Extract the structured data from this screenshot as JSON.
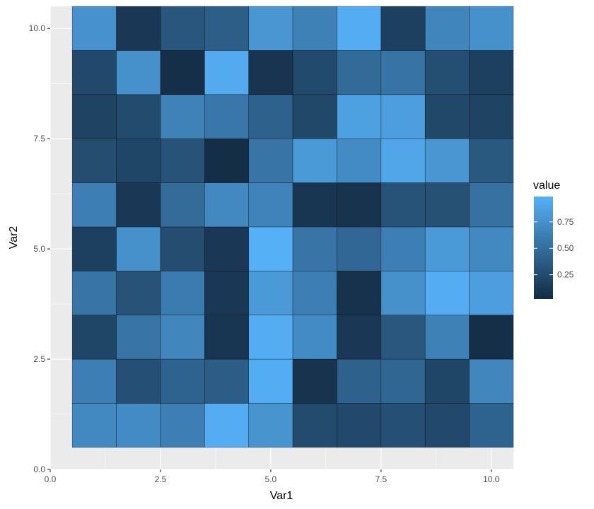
{
  "chart_data": {
    "type": "heatmap",
    "title": "",
    "xlabel": "Var1",
    "ylabel": "Var2",
    "xlim": [
      0,
      10.5
    ],
    "ylim": [
      0,
      10.5
    ],
    "x_ticks": [
      0,
      2.5,
      5,
      7.5,
      10
    ],
    "x_tick_labels": [
      "0.0",
      "2.5",
      "5.0",
      "7.5",
      "10.0"
    ],
    "y_ticks": [
      0,
      2.5,
      5,
      7.5,
      10
    ],
    "y_tick_labels": [
      "0.0",
      "2.5",
      "5.0",
      "7.5",
      "10.0"
    ],
    "grid": true,
    "x": [
      1,
      2,
      3,
      4,
      5,
      6,
      7,
      8,
      9,
      10
    ],
    "y": [
      1,
      2,
      3,
      4,
      5,
      6,
      7,
      8,
      9,
      10
    ],
    "values": [
      [
        0.7,
        0.72,
        0.63,
        0.97,
        0.78,
        0.24,
        0.22,
        0.27,
        0.22,
        0.42
      ],
      [
        0.63,
        0.27,
        0.42,
        0.37,
        0.97,
        0.06,
        0.41,
        0.44,
        0.2,
        0.68
      ],
      [
        0.2,
        0.55,
        0.68,
        0.08,
        0.97,
        0.72,
        0.1,
        0.33,
        0.64,
        0.03
      ],
      [
        0.55,
        0.3,
        0.6,
        0.1,
        0.83,
        0.63,
        0.05,
        0.76,
        0.97,
        0.86
      ],
      [
        0.16,
        0.76,
        0.25,
        0.1,
        0.99,
        0.55,
        0.45,
        0.63,
        0.83,
        0.7
      ],
      [
        0.63,
        0.1,
        0.48,
        0.7,
        0.66,
        0.08,
        0.06,
        0.3,
        0.28,
        0.52
      ],
      [
        0.25,
        0.2,
        0.3,
        0.02,
        0.55,
        0.83,
        0.72,
        0.92,
        0.8,
        0.34
      ],
      [
        0.18,
        0.24,
        0.65,
        0.57,
        0.41,
        0.21,
        0.88,
        0.86,
        0.21,
        0.18
      ],
      [
        0.22,
        0.76,
        0.03,
        0.95,
        0.07,
        0.23,
        0.47,
        0.54,
        0.26,
        0.16
      ],
      [
        0.77,
        0.1,
        0.32,
        0.38,
        0.8,
        0.64,
        0.97,
        0.16,
        0.67,
        0.76
      ]
    ],
    "legend": {
      "title": "value",
      "placement": "right",
      "ticks": [
        0.25,
        0.5,
        0.75
      ],
      "tick_labels": [
        "0.25",
        "0.50",
        "0.75"
      ],
      "range": [
        0,
        1
      ],
      "low_color": "#132B43",
      "high_color": "#56B1F7"
    },
    "panel_background": "#EBEBEB",
    "grid_color": "#FFFFFF"
  }
}
